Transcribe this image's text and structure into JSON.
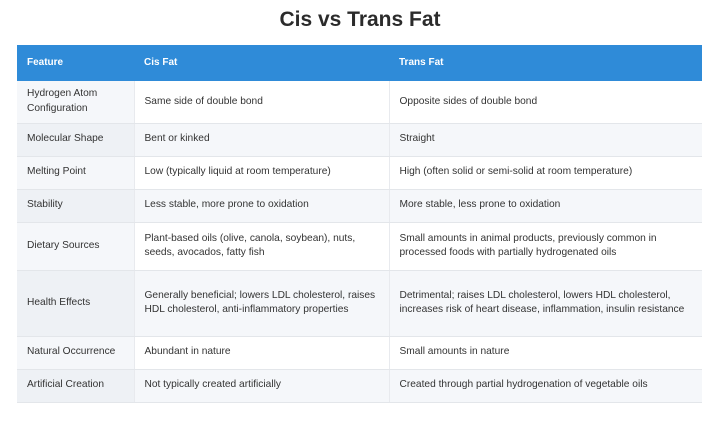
{
  "title": "Cis vs Trans Fat",
  "headers": [
    "Feature",
    "Cis Fat",
    "Trans Fat"
  ],
  "rows": [
    {
      "feature": "Hydrogen Atom Configuration",
      "cis": "Same side of double bond",
      "trans": "Opposite sides of double bond"
    },
    {
      "feature": "Molecular Shape",
      "cis": "Bent or kinked",
      "trans": "Straight"
    },
    {
      "feature": "Melting Point",
      "cis": "Low (typically liquid at room temperature)",
      "trans": "High (often solid or semi-solid at room temperature)"
    },
    {
      "feature": "Stability",
      "cis": "Less stable, more prone to oxidation",
      "trans": "More stable, less prone to oxidation"
    },
    {
      "feature": "Dietary Sources",
      "cis": "Plant-based oils (olive, canola, soybean), nuts, seeds, avocados, fatty fish",
      "trans": "Small amounts in animal products, previously common in processed foods with partially hydrogenated oils"
    },
    {
      "feature": "Health Effects",
      "cis": "Generally beneficial; lowers LDL cholesterol, raises HDL cholesterol, anti-inflammatory properties",
      "trans": "Detrimental; raises LDL cholesterol, lowers HDL cholesterol, increases risk of heart disease, inflammation, insulin resistance"
    },
    {
      "feature": "Natural Occurrence",
      "cis": "Abundant in nature",
      "trans": "Small amounts in nature"
    },
    {
      "feature": "Artificial Creation",
      "cis": "Not typically created artificially",
      "trans": "Created through partial hydrogenation of vegetable oils"
    }
  ],
  "colors": {
    "header_bg": "#2f8bd8",
    "header_text": "#ffffff",
    "title_text": "#2b2b2b"
  }
}
